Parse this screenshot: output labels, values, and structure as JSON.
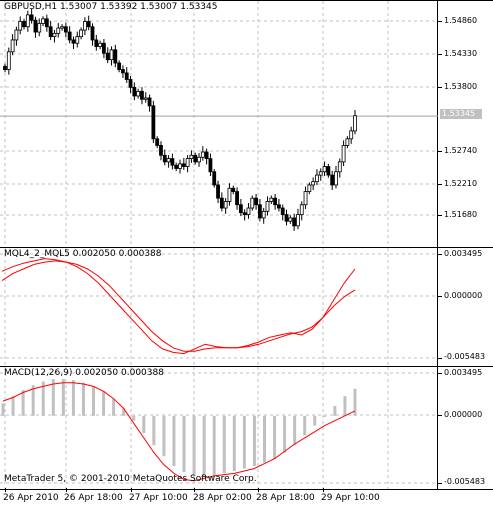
{
  "window": {
    "main_title": "GBPUSD,H1  1.53007  1.53392  1.53007  1.53345",
    "current_price": "1.53345",
    "copyright": "MetaTrader 5, © 2001-2010 MetaQuotes Software Corp."
  },
  "main_axis": {
    "labels": [
      "1.54860",
      "1.54330",
      "1.53800",
      "1.53345",
      "1.52740",
      "1.52210",
      "1.51680"
    ]
  },
  "ind1": {
    "title": "MQL4_2_MQL5 0.002050 0.000388",
    "axis_labels": [
      "0.003495",
      "0.000000",
      "-0.005483"
    ]
  },
  "ind2": {
    "title": "MACD(12,26,9) 0.002050 0.000388",
    "axis_labels": [
      "0.003495",
      "0.000000",
      "-0.005483"
    ]
  },
  "time_axis": {
    "labels": [
      "26 Apr 2010",
      "26 Apr 18:00",
      "27 Apr 10:00",
      "28 Apr 02:00",
      "28 Apr 18:00",
      "29 Apr 10:00"
    ]
  },
  "colors": {
    "bull": "#ffffff",
    "bear": "#000000",
    "signal": "#ff0000",
    "histogram": "#c0c0c0",
    "grid": "#c0c0c0"
  },
  "chart_data": [
    {
      "type": "candlestick",
      "title": "GBPUSD,H1  1.53007  1.53392  1.53007  1.53345",
      "ylim": [
        1.5145,
        1.5503
      ],
      "close": [
        1.5405,
        1.5432,
        1.545,
        1.5465,
        1.5478,
        1.547,
        1.5488,
        1.548,
        1.5462,
        1.5475,
        1.5482,
        1.547,
        1.5455,
        1.546,
        1.5468,
        1.547,
        1.5462,
        1.545,
        1.5445,
        1.5455,
        1.5465,
        1.5478,
        1.547,
        1.545,
        1.544,
        1.5445,
        1.543,
        1.542,
        1.5435,
        1.5415,
        1.5405,
        1.54,
        1.539,
        1.5378,
        1.5365,
        1.5372,
        1.536,
        1.5362,
        1.535,
        1.53,
        1.529,
        1.5275,
        1.5265,
        1.527,
        1.526,
        1.5255,
        1.5262,
        1.5258,
        1.527,
        1.5275,
        1.5265,
        1.5272,
        1.528,
        1.527,
        1.525,
        1.523,
        1.521,
        1.5195,
        1.5205,
        1.5225,
        1.522,
        1.52,
        1.5188,
        1.5185,
        1.5195,
        1.521,
        1.52,
        1.518,
        1.519,
        1.5205,
        1.521,
        1.52,
        1.5195,
        1.5185,
        1.5175,
        1.518,
        1.5168,
        1.5185,
        1.52,
        1.522,
        1.523,
        1.5235,
        1.5245,
        1.525,
        1.5258,
        1.5245,
        1.523,
        1.525,
        1.5265,
        1.529,
        1.53,
        1.5312,
        1.5335
      ],
      "axis_labels": [
        "1.54860",
        "1.54330",
        "1.53800",
        "1.52740",
        "1.52210",
        "1.51680"
      ]
    },
    {
      "type": "line",
      "title": "MQL4_2_MQL5 0.002050 0.000388",
      "ylim": [
        -0.005483,
        0.003495
      ],
      "series": [
        {
          "values": [
            0.002,
            0.0024,
            0.0027,
            0.0029,
            0.0031,
            0.003,
            0.0028,
            0.0024,
            0.0018,
            0.001,
            0.0,
            -0.001,
            -0.002,
            -0.003,
            -0.004,
            -0.0047,
            -0.005,
            -0.0051,
            -0.0047,
            -0.0043,
            -0.0045,
            -0.0046,
            -0.0046,
            -0.0044,
            -0.0041,
            -0.0037,
            -0.0035,
            -0.0033,
            -0.0035,
            -0.003,
            -0.002,
            -0.0005,
            0.001,
            0.0022
          ]
        },
        {
          "values": [
            0.0012,
            0.0018,
            0.0022,
            0.0026,
            0.0028,
            0.0029,
            0.0028,
            0.0026,
            0.0022,
            0.0016,
            0.0008,
            -0.0002,
            -0.0012,
            -0.0022,
            -0.0032,
            -0.004,
            -0.0046,
            -0.0049,
            -0.0049,
            -0.0047,
            -0.0046,
            -0.0046,
            -0.0046,
            -0.0045,
            -0.0043,
            -0.004,
            -0.0037,
            -0.0034,
            -0.0032,
            -0.0028,
            -0.002,
            -0.001,
            -0.0002,
            0.0004
          ]
        }
      ],
      "axis_labels": [
        "0.003495",
        "0.000000",
        "-0.005483"
      ]
    },
    {
      "type": "bar",
      "title": "MACD(12,26,9) 0.002050 0.000388",
      "ylim": [
        -0.005483,
        0.003495
      ],
      "series": [
        {
          "name": "MACD",
          "values": [
            0.001,
            0.0016,
            0.0021,
            0.0025,
            0.0028,
            0.003,
            0.003,
            0.0029,
            0.0027,
            0.0024,
            0.002,
            0.0014,
            0.0006,
            -0.0004,
            -0.0014,
            -0.0024,
            -0.0033,
            -0.0041,
            -0.0046,
            -0.0049,
            -0.005,
            -0.0049,
            -0.0047,
            -0.0045,
            -0.0043,
            -0.0041,
            -0.0038,
            -0.0035,
            -0.003,
            -0.0024,
            -0.0016,
            -0.0008,
            0.0,
            0.0008,
            0.0016,
            0.0022
          ]
        },
        {
          "name": "Signal",
          "values": [
            0.0012,
            0.0015,
            0.0019,
            0.0022,
            0.0024,
            0.0026,
            0.0027,
            0.0027,
            0.0026,
            0.0024,
            0.002,
            0.0014,
            0.0006,
            -0.0006,
            -0.0018,
            -0.003,
            -0.004,
            -0.0047,
            -0.0052,
            -0.0053,
            -0.0051,
            -0.0049,
            -0.0048,
            -0.0047,
            -0.0045,
            -0.0043,
            -0.0039,
            -0.0035,
            -0.0029,
            -0.0023,
            -0.0018,
            -0.0013,
            -0.0008,
            -0.0004,
            0.0,
            0.0004
          ]
        }
      ],
      "axis_labels": [
        "0.003495",
        "0.000000",
        "-0.005483"
      ]
    }
  ]
}
